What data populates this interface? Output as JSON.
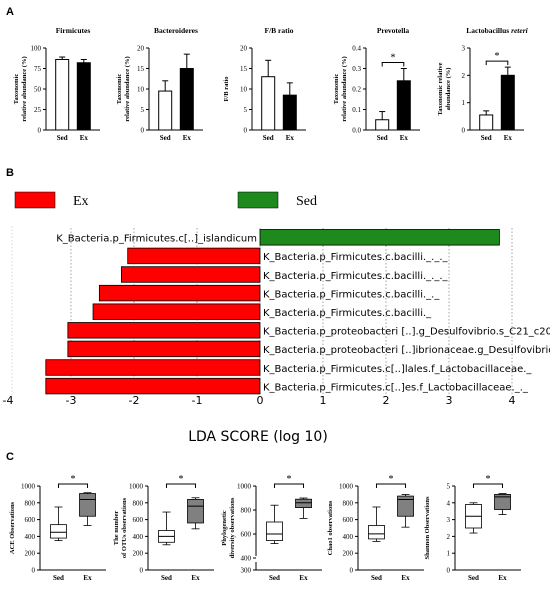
{
  "panel_letters": [
    "A",
    "B",
    "C"
  ],
  "colors": {
    "ex_bar": "#000000",
    "sed_bar": "#ffffff",
    "lda_ex": "#ff0000",
    "lda_sed": "#1e8a1e",
    "box_ex": "#808080",
    "box_sed": "#ffffff"
  },
  "chart_data": [
    {
      "type": "bar",
      "panel": "A",
      "title": "Firmicutes",
      "title_italic": false,
      "categories": [
        "Sed",
        "Ex"
      ],
      "values": [
        86,
        82
      ],
      "errors": [
        3,
        4
      ],
      "ylabel": "Taxonomic\nrelative abundance (%)",
      "ylim": [
        0,
        100
      ],
      "yticks": [
        "0",
        "25",
        "50",
        "75",
        "100"
      ],
      "significance": ""
    },
    {
      "type": "bar",
      "panel": "A",
      "title": "Bacteroideres",
      "title_italic": false,
      "categories": [
        "Sed",
        "Ex"
      ],
      "values": [
        9.5,
        15
      ],
      "errors": [
        2.5,
        3.5
      ],
      "ylabel": "Taxonomic\nrelative abundance (%)",
      "ylim": [
        0,
        20
      ],
      "yticks": [
        "0",
        "5",
        "10",
        "15",
        "20"
      ],
      "significance": ""
    },
    {
      "type": "bar",
      "panel": "A",
      "title": "F/B ratio",
      "title_italic": false,
      "categories": [
        "Sed",
        "Ex"
      ],
      "values": [
        13,
        8.5
      ],
      "errors": [
        4,
        3
      ],
      "ylabel": "F/B ratio",
      "ylim": [
        0,
        20
      ],
      "yticks": [
        "0",
        "5",
        "10",
        "15",
        "20"
      ],
      "significance": ""
    },
    {
      "type": "bar",
      "panel": "A",
      "title": "Prevotella",
      "title_italic": false,
      "categories": [
        "Sed",
        "Ex"
      ],
      "values": [
        0.05,
        0.24
      ],
      "errors": [
        0.04,
        0.06
      ],
      "ylabel": "Taxonomic\nrelative abundance (%)",
      "ylim": [
        0,
        0.4
      ],
      "yticks": [
        "0.0",
        "0.1",
        "0.2",
        "0.3",
        "0.4"
      ],
      "significance": "*"
    },
    {
      "type": "bar",
      "panel": "A",
      "title": "Lactobacillus ",
      "title_suffix": "reteri",
      "categories": [
        "Sed",
        "Ex"
      ],
      "values": [
        0.55,
        2.0
      ],
      "errors": [
        0.15,
        0.3
      ],
      "ylabel": "Taxonomic relative\nabundance (%)",
      "ylim": [
        0,
        3
      ],
      "yticks": [
        "0",
        "1",
        "2",
        "3"
      ],
      "significance": "*"
    },
    {
      "type": "bar",
      "panel": "B",
      "orientation": "horizontal",
      "legend": [
        {
          "name": "Ex",
          "color": "#ff0000"
        },
        {
          "name": "Sed",
          "color": "#1e8a1e"
        }
      ],
      "xlabel": "LDA SCORE (log 10)",
      "xlim": [
        -4,
        4
      ],
      "xticks": [
        "-4",
        "-3",
        "-2",
        "-1",
        "0",
        "1",
        "2",
        "3",
        "4"
      ],
      "features": [
        {
          "label": "K_Bacteria.p_Firmicutes.c[..]_islandicum",
          "value": 3.8,
          "group": "Sed"
        },
        {
          "label": "K_Bacteria.p_Firmicutes.c.bacilli._._._",
          "value": -2.1,
          "group": "Ex"
        },
        {
          "label": "K_Bacteria.p_Firmicutes.c.bacilli._._._",
          "value": -2.2,
          "group": "Ex"
        },
        {
          "label": "K_Bacteria.p_Firmicutes.c.bacilli._._",
          "value": -2.55,
          "group": "Ex"
        },
        {
          "label": "K_Bacteria.p_Firmicutes.c.bacilli._",
          "value": -2.65,
          "group": "Ex"
        },
        {
          "label": "K_Bacteria.p_proteobacteri [..].g_Desulfovibrio.s_C21_c20",
          "value": -3.05,
          "group": "Ex"
        },
        {
          "label": "K_Bacteria.p_proteobacteri [..]ibrionaceae.g_Desulfovibrio",
          "value": -3.05,
          "group": "Ex"
        },
        {
          "label": "K_Bacteria.p_Firmicutes.c[..]lales.f_Lactobacillaceae._",
          "value": -3.4,
          "group": "Ex"
        },
        {
          "label": "K_Bacteria.p_Firmicutes.c[..]es.f_Lactobacillaceae._._",
          "value": -3.4,
          "group": "Ex"
        }
      ]
    },
    {
      "type": "box",
      "panel": "C",
      "ylabel": "ACE Observations",
      "categories": [
        "Sed",
        "Ex"
      ],
      "ylim": [
        0,
        1000
      ],
      "yticks": [
        "0",
        "200",
        "400",
        "600",
        "800",
        "1000"
      ],
      "significance": "*",
      "boxes": [
        {
          "min": 350,
          "q1": 380,
          "median": 450,
          "q3": 540,
          "max": 750
        },
        {
          "min": 530,
          "q1": 640,
          "median": 840,
          "q3": 910,
          "max": 920
        }
      ]
    },
    {
      "type": "box",
      "panel": "C",
      "ylabel": "The number\nof OTUs observations",
      "categories": [
        "Sed",
        "Ex"
      ],
      "ylim": [
        0,
        1000
      ],
      "yticks": [
        "0",
        "200",
        "400",
        "600",
        "800",
        "1000"
      ],
      "significance": "*",
      "boxes": [
        {
          "min": 300,
          "q1": 330,
          "median": 400,
          "q3": 470,
          "max": 690
        },
        {
          "min": 490,
          "q1": 560,
          "median": 760,
          "q3": 840,
          "max": 860
        }
      ]
    },
    {
      "type": "box",
      "panel": "C",
      "ylabel": "Phylogenetic\ndiversity observations",
      "categories": [
        "Sed",
        "Ex"
      ],
      "ylim": [
        300,
        1000
      ],
      "axis_break": true,
      "yticks": [
        "300",
        "400",
        "600",
        "800",
        "1000"
      ],
      "significance": "*",
      "boxes": [
        {
          "min": 520,
          "q1": 545,
          "median": 600,
          "q3": 700,
          "max": 840
        },
        {
          "min": 730,
          "q1": 820,
          "median": 860,
          "q3": 890,
          "max": 900
        }
      ]
    },
    {
      "type": "box",
      "panel": "C",
      "ylabel": "Chao1 observations",
      "categories": [
        "Sed",
        "Ex"
      ],
      "ylim": [
        0,
        1000
      ],
      "yticks": [
        "0",
        "200",
        "400",
        "600",
        "800",
        "1000"
      ],
      "significance": "*",
      "boxes": [
        {
          "min": 340,
          "q1": 370,
          "median": 430,
          "q3": 530,
          "max": 750
        },
        {
          "min": 510,
          "q1": 640,
          "median": 840,
          "q3": 880,
          "max": 900
        }
      ]
    },
    {
      "type": "box",
      "panel": "C",
      "ylabel": "Shannon Observations",
      "categories": [
        "Sed",
        "Ex"
      ],
      "ylim": [
        0,
        5
      ],
      "yticks": [
        "0",
        "1",
        "2",
        "3",
        "4",
        "5"
      ],
      "significance": "*",
      "boxes": [
        {
          "min": 2.2,
          "q1": 2.5,
          "median": 3.2,
          "q3": 3.9,
          "max": 4.0
        },
        {
          "min": 3.3,
          "q1": 3.6,
          "median": 4.35,
          "q3": 4.5,
          "max": 4.55
        }
      ]
    }
  ]
}
